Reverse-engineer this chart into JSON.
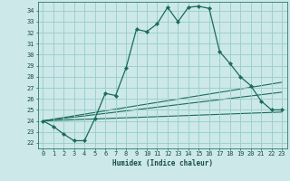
{
  "xlabel": "Humidex (Indice chaleur)",
  "background_color": "#cce8e8",
  "grid_color": "#99cccc",
  "line_color": "#1a6b5a",
  "xlim": [
    -0.5,
    23.5
  ],
  "ylim": [
    21.5,
    34.8
  ],
  "yticks": [
    22,
    23,
    24,
    25,
    26,
    27,
    28,
    29,
    30,
    31,
    32,
    33,
    34
  ],
  "xticks": [
    0,
    1,
    2,
    3,
    4,
    5,
    6,
    7,
    8,
    9,
    10,
    11,
    12,
    13,
    14,
    15,
    16,
    17,
    18,
    19,
    20,
    21,
    22,
    23
  ],
  "main_x": [
    0,
    1,
    2,
    3,
    4,
    5,
    6,
    7,
    8,
    9,
    10,
    11,
    12,
    13,
    14,
    15,
    16,
    17,
    18,
    19,
    20,
    21,
    22,
    23
  ],
  "main_y": [
    24.0,
    23.5,
    22.8,
    22.2,
    22.2,
    24.2,
    26.5,
    26.3,
    28.8,
    32.3,
    32.1,
    32.8,
    34.3,
    33.0,
    34.3,
    34.4,
    34.2,
    30.3,
    29.2,
    28.0,
    27.2,
    25.8,
    25.0,
    25.0
  ],
  "ref_lines": [
    {
      "x0": 0,
      "y0": 24.0,
      "x1": 23,
      "y1": 27.5
    },
    {
      "x0": 0,
      "y0": 24.0,
      "x1": 23,
      "y1": 26.6
    },
    {
      "x0": 0,
      "y0": 24.0,
      "x1": 23,
      "y1": 24.8
    }
  ]
}
